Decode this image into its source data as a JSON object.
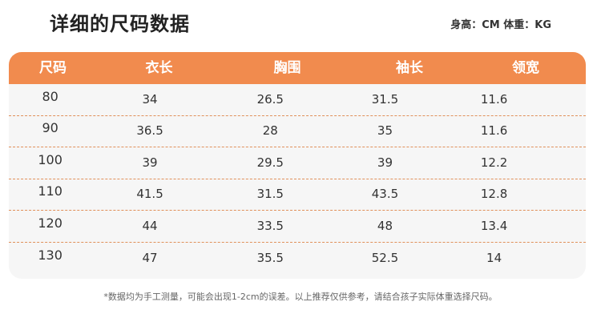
{
  "title": "详细的尺码数据",
  "units": "身高：CM 体重：KG",
  "table": {
    "headers": [
      "尺码",
      "衣长",
      "胸围",
      "袖长",
      "领宽"
    ],
    "rows": [
      [
        "80",
        "34",
        "26.5",
        "31.5",
        "11.6"
      ],
      [
        "90",
        "36.5",
        "28",
        "35",
        "11.6"
      ],
      [
        "100",
        "39",
        "29.5",
        "39",
        "12.2"
      ],
      [
        "110",
        "41.5",
        "31.5",
        "43.5",
        "12.8"
      ],
      [
        "120",
        "44",
        "33.5",
        "48",
        "13.4"
      ],
      [
        "130",
        "47",
        "35.5",
        "52.5",
        "14"
      ]
    ]
  },
  "footnote": "*数据均为手工测量，可能会出现1-2cm的误差。以上推荐仅供参考，请结合孩子实际体重选择尺码。",
  "colors": {
    "header_bg": "#f18b4e",
    "table_bg": "#f6f6f6",
    "divider": "#e0905a"
  }
}
